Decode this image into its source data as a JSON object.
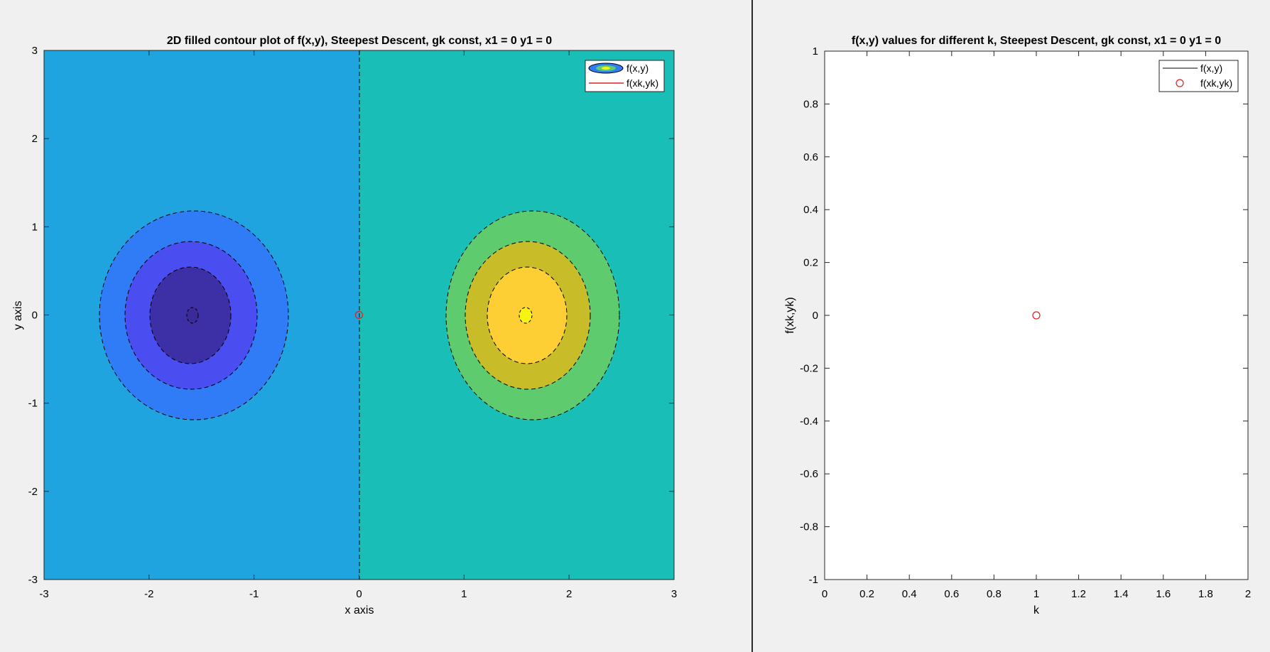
{
  "left_chart": {
    "title": "2D filled contour plot of f(x,y), Steepest Descent, gk const, x1 = 0 y1 = 0",
    "xlabel": "x axis",
    "ylabel": "y axis",
    "x_ticks": [
      "-3",
      "-2",
      "-1",
      "0",
      "1",
      "2",
      "3"
    ],
    "y_ticks": [
      "3",
      "2",
      "1",
      "0",
      "-1",
      "-2",
      "-3"
    ],
    "legend": [
      "f(x,y)",
      "f(xk,yk)"
    ]
  },
  "right_chart": {
    "title": "f(x,y) values for different k, Steepest Descent, gk const, x1 = 0 y1 = 0",
    "xlabel": "k",
    "ylabel": "f(xk,yk)",
    "x_ticks": [
      "0",
      "0.2",
      "0.4",
      "0.6",
      "0.8",
      "1",
      "1.2",
      "1.4",
      "1.6",
      "1.8",
      "2"
    ],
    "y_ticks": [
      "1",
      "0.8",
      "0.6",
      "0.4",
      "0.2",
      "0",
      "-0.2",
      "-0.4",
      "-0.6",
      "-0.8",
      "-1"
    ],
    "legend": [
      "f(x,y)",
      "f(xk,yk)"
    ]
  },
  "chart_data": [
    {
      "type": "contour",
      "title": "2D filled contour plot of f(x,y), Steepest Descent, gk const, x1 = 0 y1 = 0",
      "xlabel": "x axis",
      "ylabel": "y axis",
      "xlim": [
        -3,
        3
      ],
      "ylim": [
        -3,
        3
      ],
      "colors": {
        "level_neg4": "#3d2fa6",
        "level_neg3": "#4a4df0",
        "level_neg2": "#2f7cf6",
        "level_neg1": "#1fa4e0",
        "level_pos1": "#19bfb6",
        "level_pos2": "#5fcb6f",
        "level_pos3": "#c8bd28",
        "level_pos4": "#fdcf34",
        "peak": "#f7f414",
        "iterate": "#e02020"
      },
      "extrema": [
        {
          "name": "minimum",
          "x": -1.6,
          "y": 0
        },
        {
          "name": "maximum",
          "x": 1.6,
          "y": 0
        }
      ],
      "iterates": [
        {
          "x": 0,
          "y": 0
        }
      ],
      "legend": [
        "f(x,y)",
        "f(xk,yk)"
      ],
      "legend_position": "top-right"
    },
    {
      "type": "scatter",
      "title": "f(x,y) values for different k, Steepest Descent, gk const, x1 = 0 y1 = 0",
      "xlabel": "k",
      "ylabel": "f(xk,yk)",
      "xlim": [
        0,
        2
      ],
      "ylim": [
        -1,
        1
      ],
      "series": [
        {
          "name": "f(x,y)",
          "x": [],
          "y": [],
          "color": "#000000"
        },
        {
          "name": "f(xk,yk)",
          "x": [
            1
          ],
          "y": [
            0
          ],
          "color": "#e02020"
        }
      ],
      "legend_position": "top-right"
    }
  ]
}
